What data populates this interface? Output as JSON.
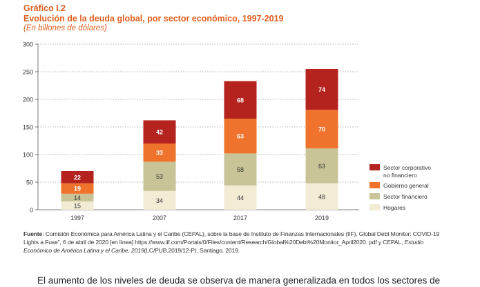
{
  "header": {
    "figure_label": "Gráfico I.2",
    "title": "Evolución de la deuda global, por sector económico, 1997-2019",
    "subtitle": "(En billones de dólares)"
  },
  "colors": {
    "corporate": "#b5231e",
    "government": "#f0732d",
    "financial": "#c8c497",
    "households": "#f2ecd5",
    "accent_text": "#e0601f"
  },
  "chart_data": {
    "type": "bar",
    "stacked": true,
    "categories": [
      "1997",
      "2007",
      "2017",
      "2019"
    ],
    "series": [
      {
        "name": "Hogares",
        "key": "households",
        "values": [
          15,
          34,
          44,
          48
        ]
      },
      {
        "name": "Sector financiero",
        "key": "financial",
        "values": [
          14,
          53,
          58,
          63
        ]
      },
      {
        "name": "Gobierno general",
        "key": "government",
        "values": [
          19,
          33,
          63,
          70
        ]
      },
      {
        "name": "Sector corporativo no financiero",
        "key": "corporate",
        "values": [
          22,
          42,
          68,
          74
        ]
      }
    ],
    "yticks": [
      "0",
      "50",
      "100",
      "150",
      "200",
      "250",
      "300"
    ],
    "ylim": [
      0,
      300
    ],
    "grid": "horizontal dotted",
    "legend": {
      "placement": "right",
      "entries": [
        {
          "key": "corporate",
          "lines": [
            "Sector corporativo",
            "no financiero"
          ]
        },
        {
          "key": "government",
          "lines": [
            "Gobierno general"
          ]
        },
        {
          "key": "financial",
          "lines": [
            "Sector financiero"
          ]
        },
        {
          "key": "households",
          "lines": [
            "Hogares"
          ]
        }
      ]
    }
  },
  "source": {
    "label": "Fuente",
    "text_1": ": Comisión Económica para América Latina y el Caribe (CEPAL), sobre la base de Instituto de Finanzas Internacionales (IIF), Global Debt Monitor: COVID-19 Lights a Fuse”, 6 de abril de 2020 [en línea] https://www.iif.com/Portals/0/Files/content/Research/Global%20Debt%20Monitor_April2020. pdf y CEPAL, ",
    "text_italic": "Estudio Económico de América Latina y el Caribe, 2019",
    "text_2": "(LC/PUB.2019/12-P), Santiago, 2019."
  },
  "body_text": "El aumento de los niveles de deuda se observa de manera generalizada en todos los sectores de"
}
